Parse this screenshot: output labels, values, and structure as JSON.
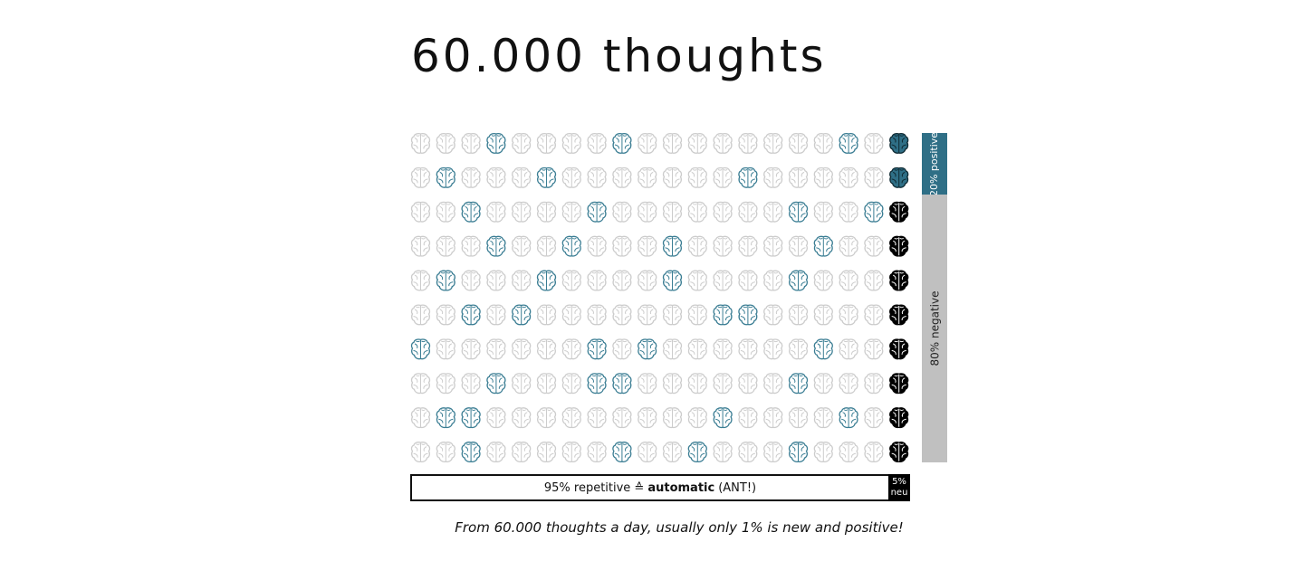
{
  "title": "60.000 thoughts",
  "chart_data": {
    "type": "table",
    "rows": 10,
    "columns": 20,
    "highlighted_cells": [
      [
        3,
        8,
        17
      ],
      [
        1,
        5,
        13
      ],
      [
        2,
        7,
        15,
        18
      ],
      [
        3,
        6,
        10,
        16
      ],
      [
        1,
        5,
        10,
        15
      ],
      [
        2,
        4,
        12,
        13
      ],
      [
        0,
        7,
        9,
        16
      ],
      [
        3,
        7,
        8,
        15
      ],
      [
        1,
        2,
        12,
        17
      ],
      [
        2,
        8,
        11,
        15
      ]
    ],
    "last_column_positive_rows": [
      0,
      1
    ],
    "last_column_negative_rows": [
      2,
      3,
      4,
      5,
      6,
      7,
      8,
      9
    ],
    "colors": {
      "grey": "#cccccc",
      "teal": "#3a7d93",
      "positive_fill": "#2f6f86",
      "negative_fill": "#000000"
    }
  },
  "side": {
    "positive_label": "20% positive",
    "negative_label": "80% negative"
  },
  "bottom": {
    "rep_prefix": "95% repetitive ≙",
    "rep_bold": "automatic",
    "rep_suffix": "(ANT!)",
    "new_percent": "5%",
    "new_label": "neu"
  },
  "caption": "From 60.000 thoughts a day, usually only 1% is new and positive!"
}
